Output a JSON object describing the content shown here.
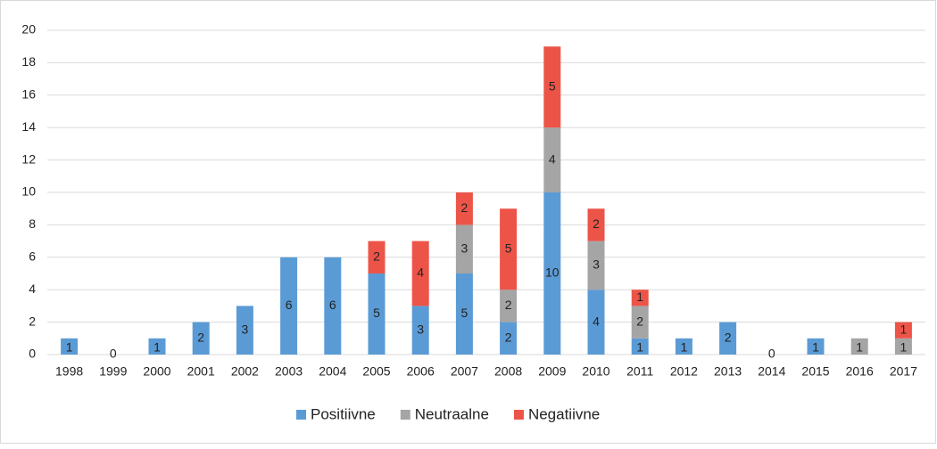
{
  "chart_data": {
    "type": "stacked-bar",
    "categories": [
      "1998",
      "1999",
      "2000",
      "2001",
      "2002",
      "2003",
      "2004",
      "2005",
      "2006",
      "2007",
      "2008",
      "2009",
      "2010",
      "2011",
      "2012",
      "2013",
      "2014",
      "2015",
      "2016",
      "2017"
    ],
    "series": [
      {
        "name": "Positiivne",
        "color": "#5b9bd5",
        "values": [
          1,
          0,
          1,
          2,
          3,
          6,
          6,
          5,
          3,
          5,
          2,
          10,
          4,
          1,
          1,
          2,
          0,
          1,
          null,
          null
        ]
      },
      {
        "name": "Neutraalne",
        "color": "#a5a5a5",
        "values": [
          null,
          null,
          null,
          null,
          null,
          null,
          null,
          null,
          null,
          3,
          2,
          4,
          3,
          2,
          null,
          null,
          null,
          null,
          1,
          1
        ]
      },
      {
        "name": "Negatiivne",
        "color": "#ed5448",
        "values": [
          null,
          null,
          null,
          null,
          null,
          null,
          null,
          2,
          4,
          2,
          5,
          5,
          2,
          1,
          null,
          null,
          null,
          null,
          null,
          1
        ]
      }
    ],
    "ylim": [
      0,
      20
    ],
    "yticks": [
      0,
      2,
      4,
      6,
      8,
      10,
      12,
      14,
      16,
      18,
      20
    ],
    "grid": true,
    "legend": "bottom"
  }
}
